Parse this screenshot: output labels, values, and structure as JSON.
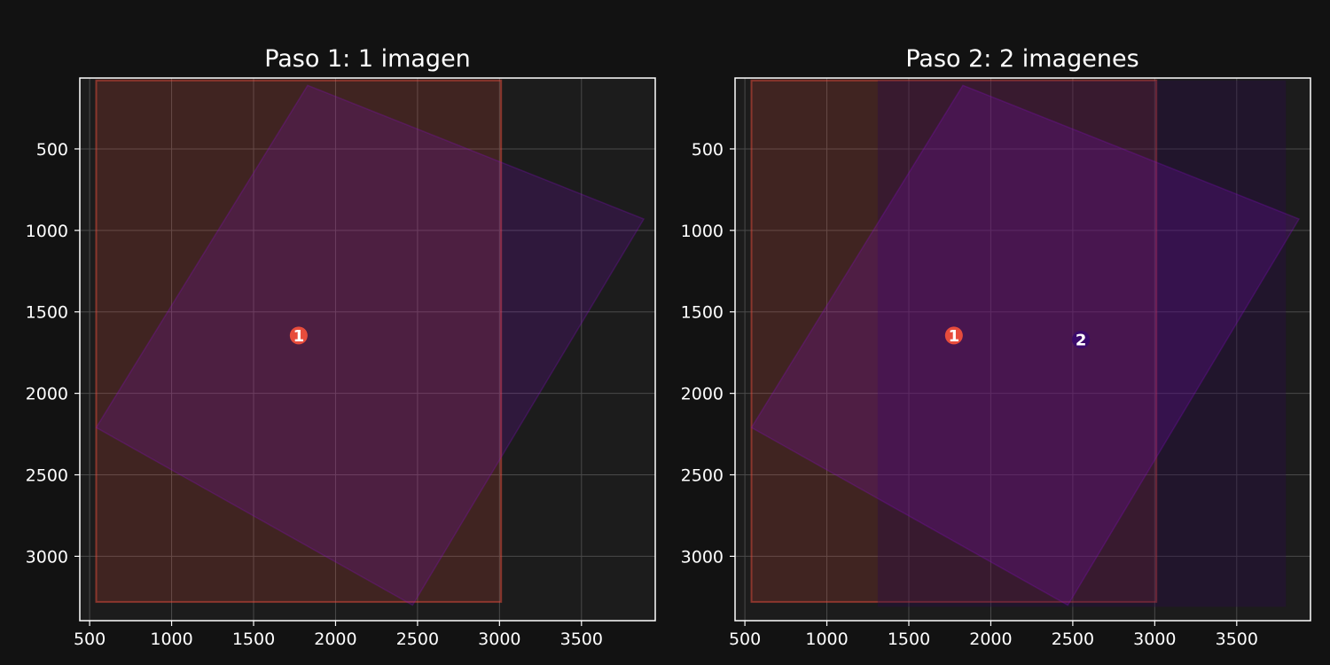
{
  "colors": {
    "figure_bg": "#121212",
    "axes_bg": "#1c1c1c",
    "grid": "#4a4a4a",
    "spine": "#ffffff",
    "text": "#ffffff"
  },
  "chart_data": [
    {
      "type": "scatter",
      "title": "Paso 1: 1 imagen",
      "xlabel": "",
      "ylabel": "",
      "xlim": [
        440,
        3950
      ],
      "ylim": [
        3395,
        65
      ],
      "y_inverted": true,
      "grid": true,
      "xticks": [
        500,
        1000,
        1500,
        2000,
        2500,
        3000,
        3500
      ],
      "yticks": [
        500,
        1000,
        1500,
        2000,
        2500,
        3000
      ],
      "footprints": [
        {
          "shape": "rect",
          "x0": 540,
          "x1": 3010,
          "y0": 80,
          "y1": 3280,
          "fill": "#e74c3c",
          "fill_opacity": 0.18,
          "stroke": "#e74c3c",
          "stroke_opacity": 0.5
        },
        {
          "shape": "polygon",
          "points": [
            [
              1830,
              110
            ],
            [
              3880,
              930
            ],
            [
              2470,
              3300
            ],
            [
              540,
              2210
            ]
          ],
          "fill": "#8a0bd0",
          "fill_opacity": 0.18,
          "stroke": "#8a0bd0",
          "stroke_opacity": 0.25
        }
      ],
      "markers": [
        {
          "label": "1",
          "x": 1775,
          "y": 1645,
          "color": "#e74c3c"
        }
      ]
    },
    {
      "type": "scatter",
      "title": "Paso 2: 2 imagenes",
      "xlabel": "",
      "ylabel": "",
      "xlim": [
        440,
        3950
      ],
      "ylim": [
        3395,
        65
      ],
      "y_inverted": true,
      "grid": true,
      "xticks": [
        500,
        1000,
        1500,
        2000,
        2500,
        3000,
        3500
      ],
      "yticks": [
        500,
        1000,
        1500,
        2000,
        2500,
        3000
      ],
      "footprints": [
        {
          "shape": "rect",
          "x0": 540,
          "x1": 3010,
          "y0": 80,
          "y1": 3280,
          "fill": "#e74c3c",
          "fill_opacity": 0.18,
          "stroke": "#e74c3c",
          "stroke_opacity": 0.5
        },
        {
          "shape": "rect",
          "x0": 1310,
          "x1": 3800,
          "y0": 80,
          "y1": 3310,
          "fill": "#2a0a4a",
          "fill_opacity": 0.35,
          "stroke": "#2a0a4a",
          "stroke_opacity": 0.0
        },
        {
          "shape": "polygon",
          "points": [
            [
              1830,
              110
            ],
            [
              3880,
              930
            ],
            [
              2470,
              3300
            ],
            [
              540,
              2210
            ]
          ],
          "fill": "#8a0bd0",
          "fill_opacity": 0.2,
          "stroke": "#8a0bd0",
          "stroke_opacity": 0.25
        }
      ],
      "markers": [
        {
          "label": "1",
          "x": 1775,
          "y": 1645,
          "color": "#e74c3c"
        },
        {
          "label": "2",
          "x": 2550,
          "y": 1670,
          "color": "#3a0a6a"
        }
      ]
    }
  ]
}
